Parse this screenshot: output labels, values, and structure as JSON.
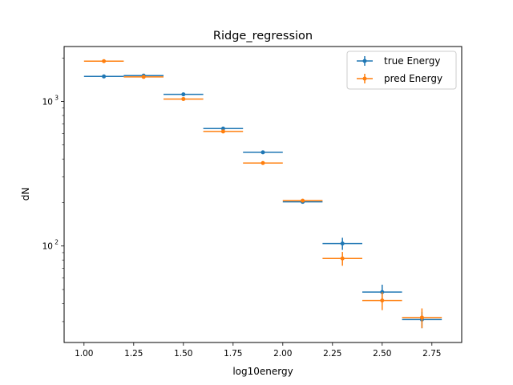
{
  "chart_data": {
    "type": "scatter",
    "title": "Ridge_regression",
    "xlabel": "log10energy",
    "ylabel": "dN",
    "xscale": "linear",
    "yscale": "log",
    "xlim": [
      0.9,
      2.9
    ],
    "ylim": [
      21.5,
      2400
    ],
    "x_ticks": [
      1.0,
      1.25,
      1.5,
      1.75,
      2.0,
      2.25,
      2.5,
      2.75
    ],
    "x_tick_labels": [
      "1.00",
      "1.25",
      "1.50",
      "1.75",
      "2.00",
      "2.25",
      "2.50",
      "2.75"
    ],
    "y_major_ticks": [
      100,
      1000
    ],
    "y_tick_labels": [
      {
        "base": "10",
        "exp": "2"
      },
      {
        "base": "10",
        "exp": "3"
      }
    ],
    "legend": {
      "placement": "top-right"
    },
    "series": [
      {
        "name": "true Energy",
        "color": "#1f77b4",
        "x": [
          1.1,
          1.3,
          1.5,
          1.7,
          1.9,
          2.1,
          2.3,
          2.5,
          2.7
        ],
        "xerr": 0.1,
        "y": [
          1490,
          1510,
          1120,
          650,
          445,
          202,
          104,
          48,
          31
        ],
        "yerr": [
          0,
          0,
          0,
          0,
          0,
          0,
          10,
          6,
          4
        ]
      },
      {
        "name": "pred Energy",
        "color": "#ff7f0e",
        "x": [
          1.1,
          1.3,
          1.5,
          1.7,
          1.9,
          2.1,
          2.3,
          2.5,
          2.7
        ],
        "xerr": 0.1,
        "y": [
          1900,
          1480,
          1040,
          620,
          375,
          206,
          82,
          42,
          32
        ],
        "yerr": [
          0,
          0,
          0,
          0,
          0,
          0,
          9,
          6,
          5
        ]
      }
    ]
  }
}
